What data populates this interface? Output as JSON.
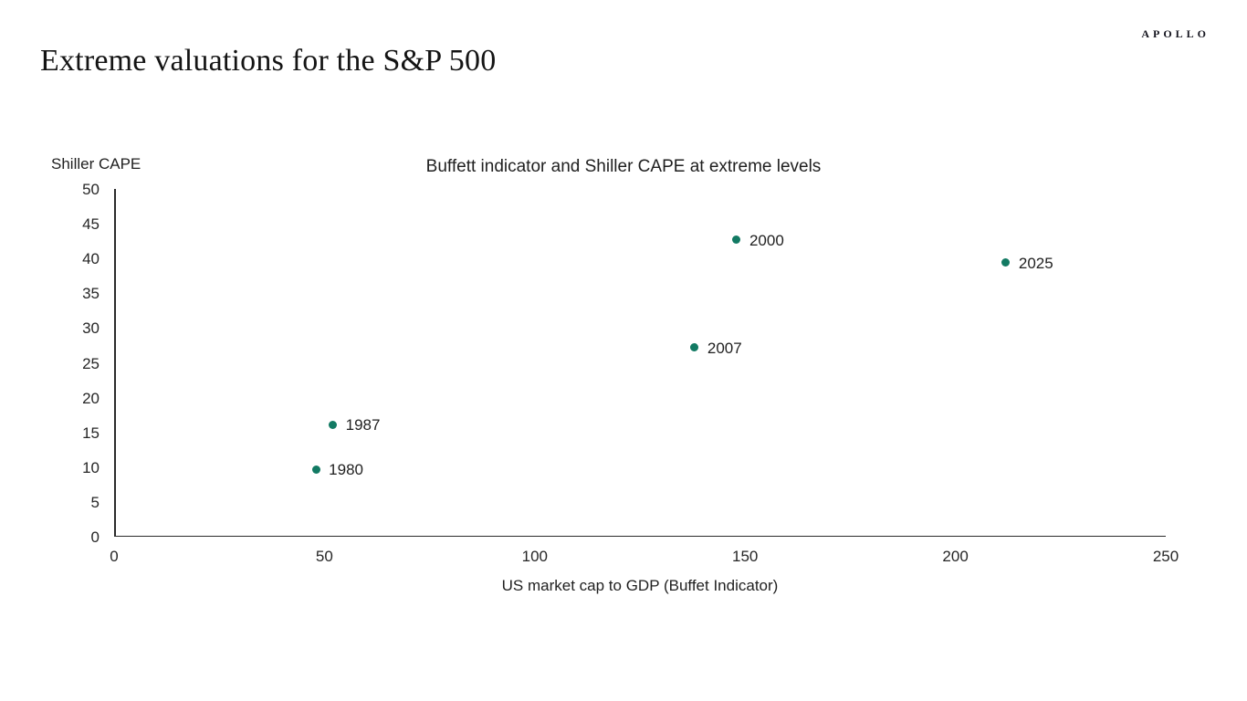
{
  "header": {
    "logo": "APOLLO",
    "title": "Extreme valuations for the S&P 500"
  },
  "chart_data": {
    "type": "scatter",
    "title": "Buffett indicator and Shiller CAPE at extreme levels",
    "xlabel": "US market cap to GDP (Buffet Indicator)",
    "ylabel": "Shiller CAPE",
    "xlim": [
      0,
      250
    ],
    "ylim": [
      0,
      50
    ],
    "xticks": [
      0,
      50,
      100,
      150,
      200,
      250
    ],
    "yticks": [
      0,
      5,
      10,
      15,
      20,
      25,
      30,
      35,
      40,
      45,
      50
    ],
    "grid": false,
    "legend": "none",
    "point_color": "#127a63",
    "axis_color": "#2b2b2b",
    "points": [
      {
        "label": "1980",
        "x": 48,
        "y": 9.7
      },
      {
        "label": "1987",
        "x": 52,
        "y": 16.1
      },
      {
        "label": "2007",
        "x": 138,
        "y": 27.2
      },
      {
        "label": "2000",
        "x": 148,
        "y": 42.7
      },
      {
        "label": "2025",
        "x": 212,
        "y": 39.4
      }
    ]
  }
}
